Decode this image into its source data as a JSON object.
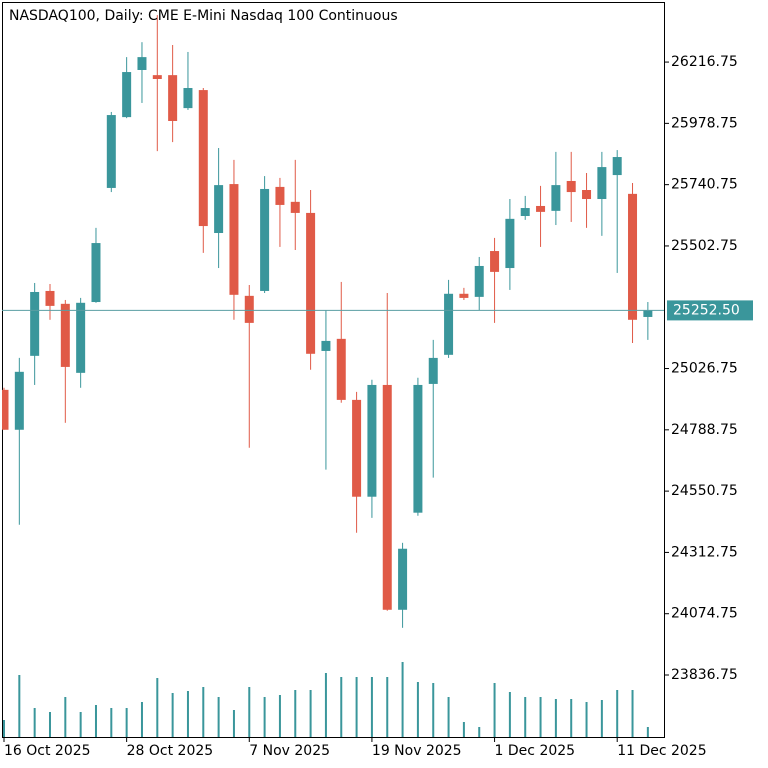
{
  "chart_data": {
    "type": "candlestick",
    "title": "NASDAQ100, Daily:  CME E-Mini Nasdaq 100 Continuous",
    "categories": [
      "16 Oct 2025",
      null,
      null,
      null,
      null,
      null,
      null,
      null,
      "28 Oct 2025",
      null,
      null,
      null,
      null,
      null,
      null,
      null,
      "7 Nov 2025",
      null,
      null,
      null,
      null,
      null,
      null,
      null,
      "19 Nov 2025",
      null,
      null,
      null,
      null,
      null,
      null,
      null,
      "1 Dec 2025",
      null,
      null,
      null,
      null,
      null,
      null,
      null,
      "11 Dec 2025",
      null,
      null
    ],
    "open": [
      24944,
      24789,
      25076,
      25328,
      25278,
      25010,
      25285,
      25728,
      26003,
      26186,
      26166,
      26166,
      26038,
      26108,
      25553,
      25743,
      25309,
      25328,
      25732,
      25674,
      25631,
      25095,
      25142,
      24905,
      24529,
      24963,
      24090,
      24467,
      24967,
      25080,
      25317,
      25305,
      25483,
      25417,
      25619,
      25658,
      25639,
      25755,
      25720,
      25685,
      25778,
      25705,
      25227
    ],
    "high": [
      24952,
      25068,
      25359,
      25355,
      25293,
      25301,
      25573,
      26023,
      26236,
      26294,
      26399,
      26283,
      26256,
      26116,
      25883,
      25837,
      25351,
      25774,
      25767,
      25837,
      25720,
      25254,
      25363,
      24936,
      24983,
      25320,
      24350,
      24991,
      25138,
      25371,
      25340,
      25460,
      25534,
      25685,
      25697,
      25736,
      25868,
      25868,
      25786,
      25868,
      25875,
      25747,
      25285
    ],
    "low": [
      24789,
      24420,
      24963,
      25216,
      24816,
      24952,
      25282,
      25712,
      25999,
      26058,
      25871,
      25906,
      26031,
      25476,
      25417,
      25216,
      24719,
      25320,
      25499,
      25487,
      25022,
      24634,
      24894,
      24389,
      24447,
      24086,
      24020,
      24455,
      24603,
      25068,
      25293,
      25254,
      25204,
      25332,
      25604,
      25499,
      25584,
      25596,
      25573,
      25542,
      25398,
      25126,
      25138
    ],
    "close": [
      24789,
      25014,
      25324,
      25270,
      25033,
      25282,
      25514,
      26011,
      26178,
      26236,
      26151,
      25988,
      26116,
      25580,
      25739,
      25313,
      25204,
      25724,
      25662,
      25631,
      25084,
      25134,
      24905,
      24529,
      24963,
      24090,
      24327,
      24963,
      25068,
      25317,
      25301,
      25425,
      25402,
      25608,
      25650,
      25635,
      25739,
      25712,
      25685,
      25809,
      25848,
      25216,
      25252.5
    ],
    "volume": [
      17,
      62,
      29,
      25,
      40,
      25,
      32,
      29,
      29,
      35,
      59,
      44,
      46,
      50,
      40,
      27,
      50,
      40,
      42,
      47,
      47,
      64,
      60,
      60,
      60,
      60,
      75,
      55,
      54,
      40,
      15,
      10,
      54,
      45,
      40,
      40,
      38,
      38,
      35,
      37,
      47,
      47,
      10
    ],
    "up_color": "#3a969b",
    "down_color": "#e05a47",
    "volume_color": "#3a969b",
    "ylim": [
      23596,
      26450
    ],
    "yticks": [
      23836.75,
      24074.75,
      24312.75,
      24550.75,
      24788.75,
      25026.75,
      25502.75,
      25740.75,
      25978.75,
      26216.75
    ],
    "last_price": {
      "value": 25252.5,
      "label": "25252.50"
    },
    "grid": false
  }
}
